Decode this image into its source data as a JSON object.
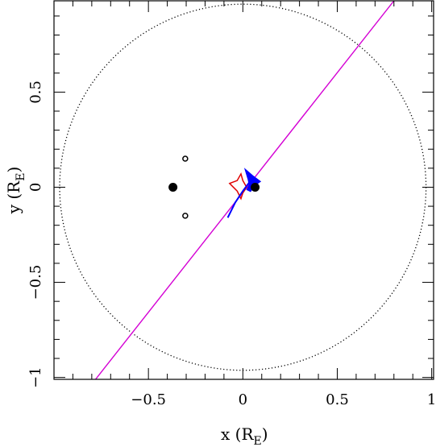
{
  "chart_data": {
    "type": "scatter",
    "title": "",
    "xlabel": "x (R",
    "xlabel_sub": "E",
    "xlabel_close": ")",
    "ylabel": "y (R",
    "ylabel_sub": "E",
    "ylabel_close": ")",
    "xlim": [
      -1.0,
      1.01
    ],
    "ylim": [
      -1.01,
      0.98
    ],
    "grid": false,
    "x_ticks": [
      {
        "value": -0.5,
        "label": "−0.5"
      },
      {
        "value": 0,
        "label": "0"
      },
      {
        "value": 0.5,
        "label": "0.5"
      },
      {
        "value": 1,
        "label": "1"
      }
    ],
    "y_ticks": [
      {
        "value": -1,
        "label": "−1"
      },
      {
        "value": -0.5,
        "label": "−0.5"
      },
      {
        "value": 0,
        "label": "0"
      },
      {
        "value": 0.5,
        "label": "0.5"
      }
    ],
    "einstein_ring": {
      "center": [
        0,
        0
      ],
      "radius": 0.97,
      "style": "dotted"
    },
    "lenses": [
      {
        "x": -0.37,
        "y": 0.0
      },
      {
        "x": 0.065,
        "y": 0.0
      }
    ],
    "open_circles": [
      {
        "x": -0.305,
        "y": 0.15
      },
      {
        "x": -0.305,
        "y": -0.15
      }
    ],
    "trajectory": {
      "x1": -0.78,
      "y1": -1.01,
      "x2": 0.8,
      "y2": 0.98
    },
    "caustic": [
      [
        -0.07,
        0.02
      ],
      [
        -0.03,
        0.035
      ],
      [
        -0.01,
        0.07
      ],
      [
        0.0,
        0.035
      ],
      [
        0.02,
        0.0
      ],
      [
        0.0,
        -0.03
      ],
      [
        -0.01,
        -0.06
      ],
      [
        -0.03,
        -0.02
      ]
    ],
    "source_track": [
      [
        -0.08,
        -0.16
      ],
      [
        -0.04,
        -0.08
      ],
      [
        0.0,
        -0.02
      ],
      [
        0.03,
        0.02
      ],
      [
        0.05,
        0.05
      ],
      [
        0.07,
        0.03
      ],
      [
        0.06,
        0.0
      ],
      [
        0.04,
        -0.01
      ],
      [
        0.03,
        0.04
      ],
      [
        0.015,
        0.09
      ],
      [
        0.05,
        0.06
      ],
      [
        0.09,
        0.03
      ],
      [
        0.06,
        0.01
      ],
      [
        0.04,
        -0.02
      ],
      [
        0.02,
        -0.01
      ]
    ],
    "colors": {
      "frame": "#000000",
      "ring": "#000000",
      "trajectory": "#d400d4",
      "caustic": "#e00000",
      "source": "#0000ff"
    }
  }
}
